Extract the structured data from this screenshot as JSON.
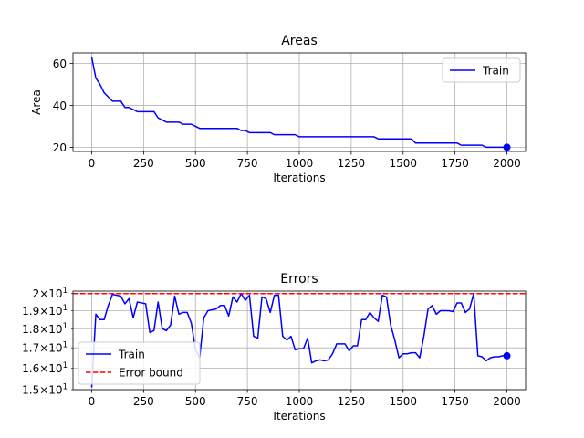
{
  "chart_data": [
    {
      "type": "line",
      "title": "Areas",
      "xlabel": "Iterations",
      "ylabel": "Area",
      "xlim": [
        -90,
        2090
      ],
      "ylim": [
        18,
        65
      ],
      "xticks": [
        0,
        250,
        500,
        750,
        1000,
        1250,
        1500,
        1750,
        2000
      ],
      "yticks": [
        20,
        40,
        60
      ],
      "grid": true,
      "legend_position": "top-right",
      "series": [
        {
          "name": "Train",
          "color": "#0000ff",
          "style": "solid",
          "x": [
            0,
            20,
            40,
            60,
            80,
            100,
            120,
            140,
            160,
            180,
            200,
            220,
            240,
            260,
            280,
            300,
            320,
            340,
            360,
            380,
            400,
            420,
            440,
            460,
            480,
            500,
            520,
            540,
            560,
            580,
            600,
            620,
            640,
            660,
            680,
            700,
            720,
            740,
            760,
            780,
            800,
            820,
            840,
            860,
            880,
            900,
            920,
            940,
            960,
            980,
            1000,
            1020,
            1040,
            1060,
            1080,
            1100,
            1120,
            1140,
            1160,
            1180,
            1200,
            1220,
            1240,
            1260,
            1280,
            1300,
            1320,
            1340,
            1360,
            1380,
            1400,
            1420,
            1440,
            1460,
            1480,
            1500,
            1520,
            1540,
            1560,
            1580,
            1600,
            1620,
            1640,
            1660,
            1680,
            1700,
            1720,
            1740,
            1760,
            1780,
            1800,
            1820,
            1840,
            1860,
            1880,
            1900,
            1920,
            1940,
            1960,
            1980,
            2000
          ],
          "y": [
            63,
            53,
            50,
            46,
            44,
            42,
            42,
            42,
            39,
            39,
            38,
            37,
            37,
            37,
            37,
            37,
            34,
            33,
            32,
            32,
            32,
            32,
            31,
            31,
            31,
            30,
            29,
            29,
            29,
            29,
            29,
            29,
            29,
            29,
            29,
            29,
            28,
            28,
            27,
            27,
            27,
            27,
            27,
            27,
            26,
            26,
            26,
            26,
            26,
            26,
            25,
            25,
            25,
            25,
            25,
            25,
            25,
            25,
            25,
            25,
            25,
            25,
            25,
            25,
            25,
            25,
            25,
            25,
            25,
            24,
            24,
            24,
            24,
            24,
            24,
            24,
            24,
            24,
            22,
            22,
            22,
            22,
            22,
            22,
            22,
            22,
            22,
            22,
            22,
            21,
            21,
            21,
            21,
            21,
            21,
            20,
            20,
            20,
            20,
            20,
            20
          ]
        }
      ],
      "end_marker": {
        "x": 2000,
        "y": 20
      }
    },
    {
      "type": "line",
      "title": "Errors",
      "xlabel": "Iterations",
      "ylabel": "",
      "yscale": "log",
      "xlim": [
        -90,
        2090
      ],
      "ylim": [
        15,
        20.15
      ],
      "xticks": [
        0,
        250,
        500,
        750,
        1000,
        1250,
        1500,
        1750,
        2000
      ],
      "ytick_values": [
        15,
        16,
        17,
        18,
        19,
        20
      ],
      "ytick_mantissas": [
        "1.5",
        "1.6",
        "1.7",
        "1.8",
        "1.9",
        "2"
      ],
      "ytick_times": "×",
      "ytick_base": "10",
      "ytick_exponent": "1",
      "grid": true,
      "legend_position": "lower-left",
      "series": [
        {
          "name": "Train",
          "color": "#0000ff",
          "style": "solid",
          "x": [
            0,
            20,
            40,
            60,
            80,
            100,
            120,
            140,
            160,
            180,
            200,
            220,
            240,
            260,
            280,
            300,
            320,
            340,
            360,
            380,
            400,
            420,
            440,
            460,
            480,
            500,
            520,
            540,
            560,
            580,
            600,
            620,
            640,
            660,
            680,
            700,
            720,
            740,
            760,
            780,
            800,
            820,
            840,
            860,
            880,
            900,
            920,
            940,
            960,
            980,
            1000,
            1020,
            1040,
            1060,
            1080,
            1100,
            1120,
            1140,
            1160,
            1180,
            1200,
            1220,
            1240,
            1260,
            1280,
            1300,
            1320,
            1340,
            1360,
            1380,
            1400,
            1420,
            1440,
            1460,
            1480,
            1500,
            1520,
            1540,
            1560,
            1580,
            1600,
            1620,
            1640,
            1660,
            1680,
            1700,
            1720,
            1740,
            1760,
            1780,
            1800,
            1820,
            1840,
            1860,
            1880,
            1900,
            1920,
            1940,
            1960,
            1980,
            2000
          ],
          "y": [
            15.1,
            18.8,
            18.5,
            18.5,
            19.3,
            19.95,
            19.9,
            19.85,
            19.4,
            19.7,
            18.6,
            19.5,
            19.45,
            19.4,
            17.8,
            17.9,
            19.5,
            18.0,
            17.9,
            18.2,
            19.85,
            18.8,
            18.9,
            18.9,
            18.3,
            16.9,
            16.5,
            18.6,
            19.0,
            19.05,
            19.1,
            19.3,
            19.3,
            18.7,
            19.8,
            19.5,
            20.0,
            19.6,
            19.9,
            17.6,
            17.5,
            19.8,
            19.7,
            18.9,
            19.9,
            19.9,
            17.6,
            17.4,
            17.6,
            16.9,
            16.95,
            16.95,
            17.5,
            16.25,
            16.35,
            16.4,
            16.35,
            16.4,
            16.7,
            17.2,
            17.2,
            17.2,
            16.85,
            17.1,
            17.1,
            18.5,
            18.5,
            18.9,
            18.6,
            18.4,
            19.9,
            19.8,
            18.2,
            17.4,
            16.5,
            16.7,
            16.7,
            16.75,
            16.75,
            16.5,
            17.6,
            19.1,
            19.3,
            18.8,
            19.0,
            19.0,
            19.0,
            18.95,
            19.45,
            19.45,
            18.9,
            19.1,
            20.0,
            16.6,
            16.55,
            16.35,
            16.5,
            16.55,
            16.55,
            16.6,
            16.6
          ]
        },
        {
          "name": "Error bound",
          "color": "#ff0000",
          "style": "dashed",
          "x": [
            -90,
            2090
          ],
          "y": [
            20,
            20
          ]
        }
      ],
      "end_marker": {
        "x": 2000,
        "y": 16.6
      }
    }
  ]
}
